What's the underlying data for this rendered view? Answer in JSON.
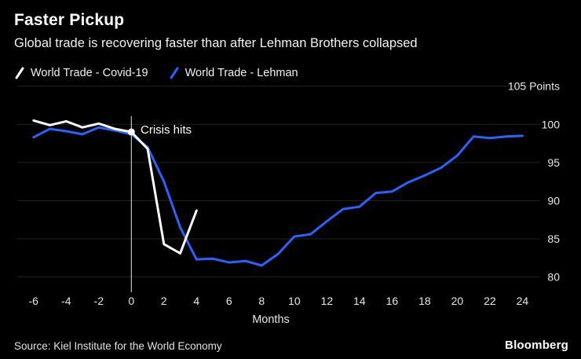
{
  "header": {
    "title": "Faster Pickup",
    "subtitle": "Global trade is recovering faster than after Lehman Brothers collapsed"
  },
  "legend": [
    {
      "label": "World Trade - Covid-19",
      "color": "#ffffff"
    },
    {
      "label": "World Trade - Lehman",
      "color": "#2962ff"
    }
  ],
  "annotation": {
    "label": "Crisis hits",
    "x": 0,
    "dot_value": 99.0,
    "line_color": "#e8e8e8",
    "dot_color": "#ffffff"
  },
  "chart_data": {
    "type": "line",
    "title": "Faster Pickup",
    "xlabel": "Months",
    "ylabel": "Points",
    "xlim": [
      -7,
      24.8
    ],
    "ylim": [
      78,
      106
    ],
    "grid": true,
    "legend_position": "top-left",
    "x_ticks": [
      -6,
      -4,
      -2,
      0,
      2,
      4,
      6,
      8,
      10,
      12,
      14,
      16,
      18,
      20,
      22,
      24
    ],
    "y_ticks": [
      105,
      100,
      95,
      90,
      85,
      80
    ],
    "y_tick_labels": [
      "105 Points",
      "100",
      "95",
      "90",
      "85",
      "80"
    ],
    "series": [
      {
        "name": "World Trade - Covid-19",
        "color": "#ffffff",
        "x": [
          -6,
          -5,
          -4,
          -3,
          -2,
          -1,
          0,
          1,
          2,
          3,
          4
        ],
        "values": [
          100.5,
          99.9,
          100.4,
          99.6,
          100.1,
          99.4,
          99.0,
          96.8,
          84.3,
          83.1,
          88.7
        ]
      },
      {
        "name": "World Trade - Lehman",
        "color": "#2962ff",
        "x": [
          -6,
          -5,
          -4,
          -3,
          -2,
          -1,
          0,
          1,
          2,
          3,
          4,
          5,
          6,
          7,
          8,
          9,
          10,
          11,
          12,
          13,
          14,
          15,
          16,
          17,
          18,
          19,
          20,
          21,
          22,
          23,
          24
        ],
        "values": [
          98.3,
          99.4,
          99.1,
          98.7,
          99.6,
          99.2,
          98.7,
          97.0,
          92.5,
          86.5,
          82.3,
          82.4,
          81.9,
          82.1,
          81.5,
          83.0,
          85.3,
          85.6,
          87.3,
          88.9,
          89.2,
          91.0,
          91.2,
          92.4,
          93.3,
          94.3,
          95.9,
          98.4,
          98.2,
          98.4,
          98.5
        ]
      }
    ]
  },
  "footer": {
    "source": "Source: Kiel Institute for the World Economy",
    "logo": "Bloomberg"
  }
}
